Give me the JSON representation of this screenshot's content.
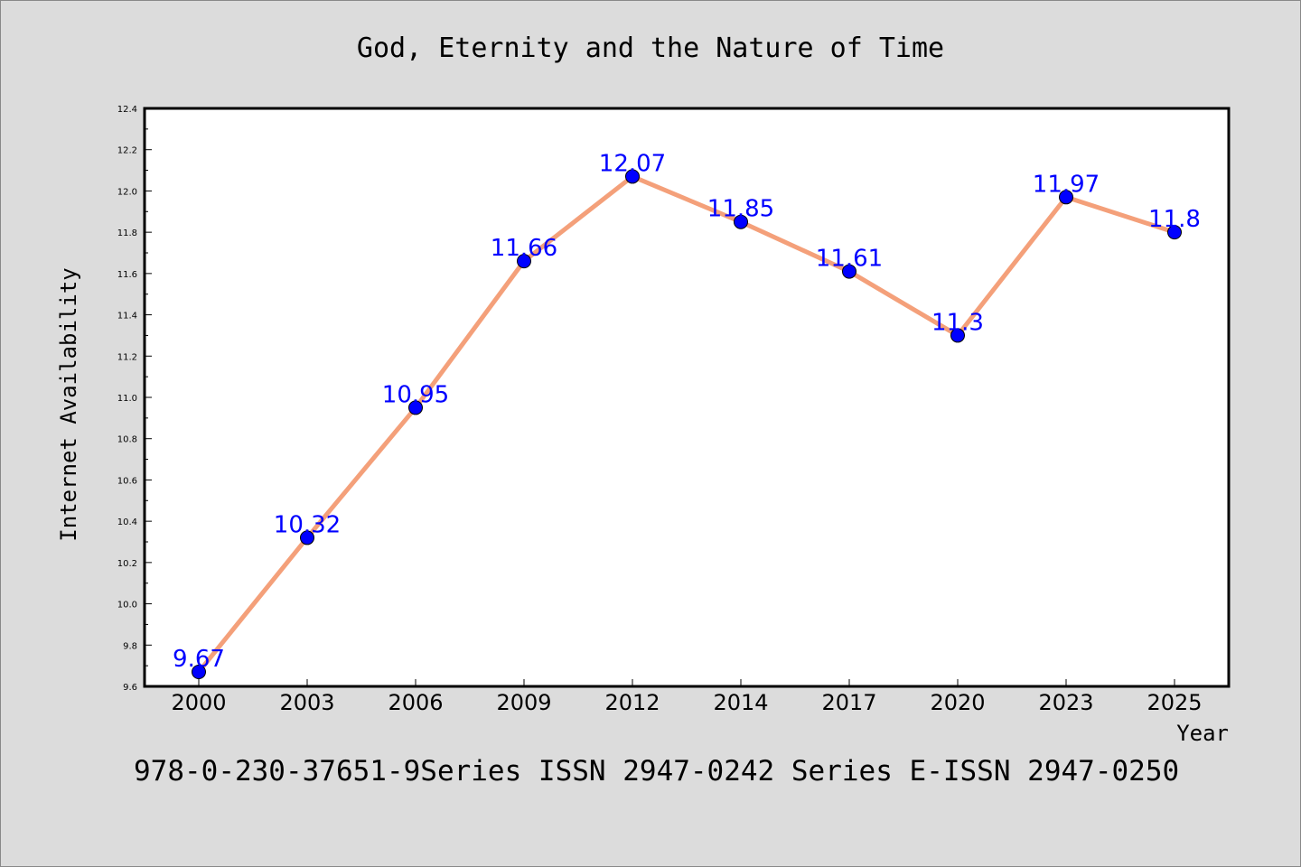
{
  "chart_data": {
    "type": "line",
    "title": "God, Eternity and the Nature of Time",
    "xlabel": "Year",
    "ylabel": "Internet Availability",
    "categories": [
      "2000",
      "2003",
      "2006",
      "2009",
      "2012",
      "2014",
      "2017",
      "2020",
      "2023",
      "2025"
    ],
    "values": [
      9.67,
      10.32,
      10.95,
      11.66,
      12.07,
      11.85,
      11.61,
      11.3,
      11.97,
      11.8
    ],
    "data_labels": [
      "9.67",
      "10.32",
      "10.95",
      "11.66",
      "12.07",
      "11.85",
      "11.61",
      "11.3",
      "11.97",
      "11.8"
    ],
    "ylim": [
      9.6,
      12.4
    ],
    "yticks": [
      "9.6",
      "9.8",
      "10.0",
      "10.2",
      "10.4",
      "10.6",
      "10.8",
      "11.0",
      "11.2",
      "11.4",
      "11.6",
      "11.8",
      "12.0",
      "12.2",
      "12.4"
    ],
    "grid": false,
    "line_color": "#f4a07a",
    "marker_color": "#0000ff",
    "label_color": "#0000ff",
    "background": "#dcdcdc",
    "plot_background": "#ffffff"
  },
  "footer": {
    "text": "978-0-230-37651-9Series ISSN 2947-0242 Series E-ISSN 2947-0250"
  }
}
